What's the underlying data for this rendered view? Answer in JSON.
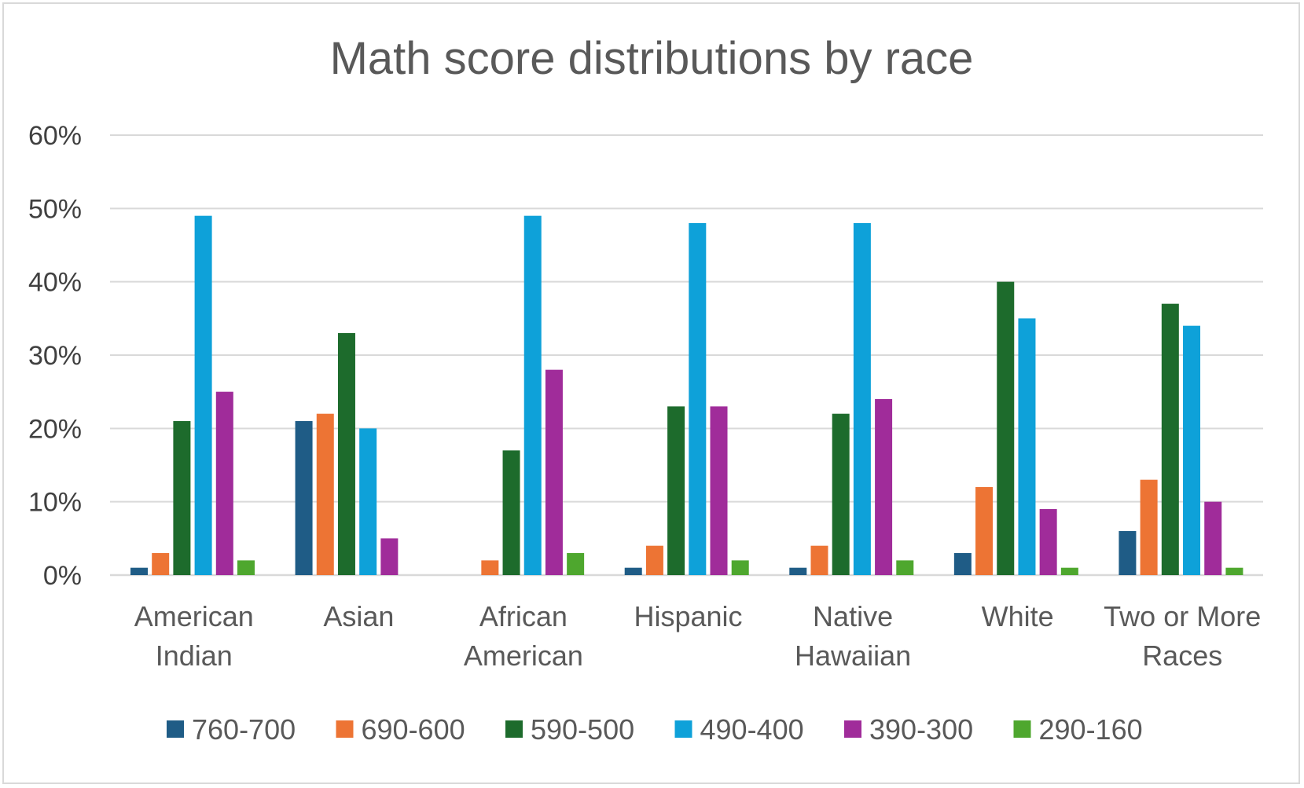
{
  "chart_data": {
    "type": "bar",
    "title": "Math score distributions by race",
    "xlabel": "",
    "ylabel": "",
    "ylim": [
      0,
      0.6
    ],
    "yticks": [
      0,
      0.1,
      0.2,
      0.3,
      0.4,
      0.5,
      0.6
    ],
    "ytick_labels": [
      "0%",
      "10%",
      "20%",
      "30%",
      "40%",
      "50%",
      "60%"
    ],
    "grid": true,
    "legend_position": "bottom",
    "categories": [
      [
        "American",
        "Indian"
      ],
      [
        "Asian"
      ],
      [
        "African",
        "American"
      ],
      [
        "Hispanic"
      ],
      [
        "Native",
        "Hawaiian"
      ],
      [
        "White"
      ],
      [
        "Two or More",
        "Races"
      ]
    ],
    "series": [
      {
        "name": "760-700",
        "color": "#1f5c86",
        "values": [
          0.01,
          0.21,
          0.0,
          0.01,
          0.01,
          0.03,
          0.06
        ]
      },
      {
        "name": "690-600",
        "color": "#ed7434",
        "values": [
          0.03,
          0.22,
          0.02,
          0.04,
          0.04,
          0.12,
          0.13
        ]
      },
      {
        "name": "590-500",
        "color": "#1d6b2c",
        "values": [
          0.21,
          0.33,
          0.17,
          0.23,
          0.22,
          0.4,
          0.37
        ]
      },
      {
        "name": "490-400",
        "color": "#0ea1d9",
        "values": [
          0.49,
          0.2,
          0.49,
          0.48,
          0.48,
          0.35,
          0.34
        ]
      },
      {
        "name": "390-300",
        "color": "#a02c9a",
        "values": [
          0.25,
          0.05,
          0.28,
          0.23,
          0.24,
          0.09,
          0.1
        ]
      },
      {
        "name": "290-160",
        "color": "#4ea72e",
        "values": [
          0.02,
          0.0,
          0.03,
          0.02,
          0.02,
          0.01,
          0.01
        ]
      }
    ],
    "gridline_color": "#d9d9d9"
  }
}
